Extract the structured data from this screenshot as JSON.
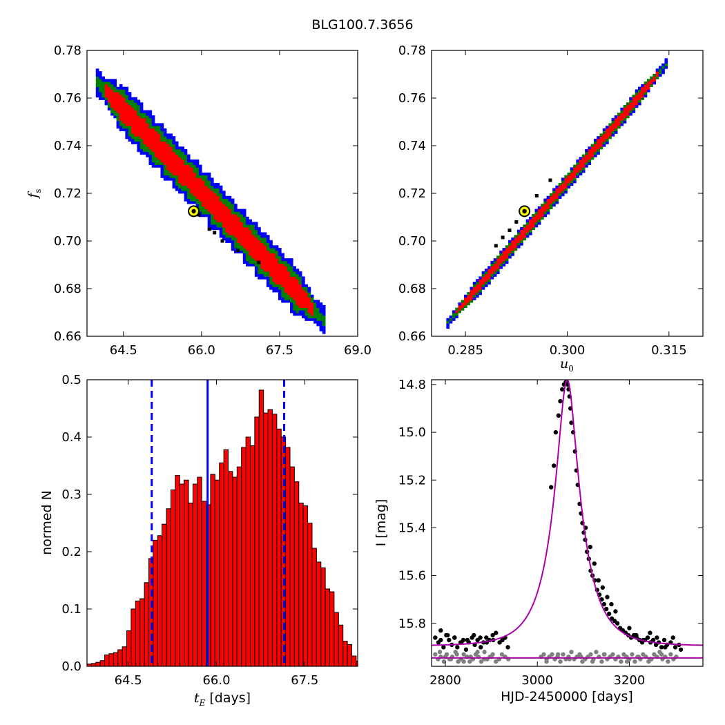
{
  "figure": {
    "title": "BLG100.7.3656"
  },
  "colors": {
    "sigma1": "#ff0000",
    "sigma2": "#008000",
    "sigma3": "#0000ff",
    "bar": "#ff0000",
    "model": "#aa00aa",
    "data": "#000000",
    "residual": "#808080",
    "best": "#ffff00"
  },
  "chart_data": [
    {
      "type": "heatmap",
      "panel": "top-left",
      "xlabel": "",
      "ylabel": "f_s",
      "ylabel_main": "f",
      "ylabel_sub": "s",
      "xlim": [
        63.8,
        69.0
      ],
      "ylim": [
        0.66,
        0.78
      ],
      "xticks": [
        "64.5",
        "66.0",
        "67.5",
        "69.0"
      ],
      "xtick_values": [
        64.5,
        66.0,
        67.5,
        69.0
      ],
      "yticks": [
        "0.66",
        "0.68",
        "0.70",
        "0.72",
        "0.74",
        "0.76",
        "0.78"
      ],
      "ytick_values": [
        0.66,
        0.68,
        0.7,
        0.72,
        0.74,
        0.76,
        0.78
      ],
      "ridge": [
        [
          64.0,
          0.7665
        ],
        [
          68.3,
          0.668
        ]
      ],
      "half_width": {
        "sigma1": 0.0048,
        "sigma2": 0.0075,
        "sigma3": 0.0098
      },
      "best_fit": [
        65.85,
        0.7125
      ],
      "black_cells": [
        [
          65.95,
          0.711
        ],
        [
          66.15,
          0.705
        ],
        [
          66.25,
          0.7035
        ],
        [
          66.4,
          0.7
        ],
        [
          66.7,
          0.696
        ],
        [
          67.1,
          0.691
        ]
      ]
    },
    {
      "type": "heatmap",
      "panel": "top-right",
      "xlabel": "u_0",
      "xlabel_main": "u",
      "xlabel_sub": "0",
      "ylabel": "",
      "xlim": [
        0.28,
        0.32
      ],
      "ylim": [
        0.66,
        0.78
      ],
      "xticks": [
        "0.285",
        "0.300",
        "0.315"
      ],
      "xtick_values": [
        0.285,
        0.3,
        0.315
      ],
      "yticks": [
        "0.66",
        "0.68",
        "0.70",
        "0.72",
        "0.74",
        "0.76",
        "0.78"
      ],
      "ytick_values": [
        0.66,
        0.68,
        0.7,
        0.72,
        0.74,
        0.76,
        0.78
      ],
      "ridge": [
        [
          0.2827,
          0.667
        ],
        [
          0.3142,
          0.773
        ]
      ],
      "half_width": {
        "sigma1": 0.0018,
        "sigma2": 0.0028,
        "sigma3": 0.0037
      },
      "best_fit": [
        0.2937,
        0.7125
      ],
      "black_cells": [
        [
          0.2925,
          0.708
        ],
        [
          0.2915,
          0.7045
        ],
        [
          0.2905,
          0.7015
        ],
        [
          0.2895,
          0.698
        ],
        [
          0.2955,
          0.719
        ],
        [
          0.2975,
          0.7255
        ]
      ]
    },
    {
      "type": "bar",
      "panel": "bottom-left",
      "xlabel": "t_E [days]",
      "xlabel_main": "t",
      "xlabel_sub": "E",
      "xlabel_unit": " [days]",
      "ylabel": "normed N",
      "xlim": [
        63.8,
        68.4
      ],
      "ylim": [
        0.0,
        0.5
      ],
      "xticks": [
        "64.5",
        "66.0",
        "67.5"
      ],
      "xtick_values": [
        64.5,
        66.0,
        67.5
      ],
      "yticks": [
        "0.0",
        "0.1",
        "0.2",
        "0.3",
        "0.4",
        "0.5"
      ],
      "ytick_values": [
        0.0,
        0.1,
        0.2,
        0.3,
        0.4,
        0.5
      ],
      "bin_start": 63.8,
      "bin_width": 0.075,
      "values": [
        0.004,
        0.005,
        0.007,
        0.01,
        0.02,
        0.022,
        0.024,
        0.029,
        0.034,
        0.062,
        0.1,
        0.114,
        0.118,
        0.146,
        0.188,
        0.22,
        0.228,
        0.248,
        0.275,
        0.308,
        0.333,
        0.318,
        0.325,
        0.285,
        0.318,
        0.33,
        0.288,
        0.282,
        0.335,
        0.325,
        0.355,
        0.378,
        0.34,
        0.33,
        0.348,
        0.382,
        0.4,
        0.385,
        0.435,
        0.482,
        0.442,
        0.448,
        0.44,
        0.414,
        0.4,
        0.382,
        0.348,
        0.322,
        0.285,
        0.28,
        0.25,
        0.206,
        0.182,
        0.172,
        0.135,
        0.13,
        0.094,
        0.072,
        0.044,
        0.038,
        0.018,
        0.009,
        0.005,
        0.004,
        0.003,
        0.003
      ],
      "vlines": {
        "solid": 65.85,
        "dashed": [
          64.9,
          67.15
        ]
      }
    },
    {
      "type": "scatter",
      "panel": "bottom-right",
      "xlabel": "HJD-2450000 [days]",
      "ylabel": "I [mag]",
      "xlim": [
        2770,
        3360
      ],
      "ylim": [
        15.98,
        14.78
      ],
      "xticks": [
        "2800",
        "3000",
        "3200"
      ],
      "xtick_values": [
        2800,
        3000,
        3200
      ],
      "yticks": [
        "14.8",
        "15.0",
        "15.2",
        "15.4",
        "15.6",
        "15.8"
      ],
      "ytick_values": [
        14.8,
        15.0,
        15.2,
        15.4,
        15.6,
        15.8
      ],
      "model": {
        "t0": 3065,
        "tE": 65.85,
        "u0": 0.2937,
        "fs": 0.7125,
        "base_mag": 15.895
      },
      "residual_level": 15.945,
      "series": [
        {
          "x": [
            2778,
            2785,
            2790,
            2796,
            2802,
            2808,
            2814,
            2820,
            2826,
            2833,
            2839,
            2845,
            2851,
            2858,
            2864,
            2870,
            2877,
            2883,
            2889,
            2896,
            2903,
            2910,
            2918,
            2924,
            2930,
            2936,
            2790,
            2805,
            2820,
            2835,
            2848,
            2862,
            2876,
            2890,
            2904,
            3030,
            3036,
            3040,
            3046,
            3050,
            3054,
            3058,
            3062,
            3066,
            3068,
            3070,
            3072,
            3074,
            3078,
            3082,
            3085,
            3088,
            3092,
            3095,
            3098,
            3101,
            3104,
            3108,
            3112,
            3116,
            3120,
            3125,
            3130,
            3135,
            3140,
            3145,
            3150,
            3156,
            3162,
            3168,
            3174,
            3180,
            3186,
            3192,
            3198,
            3204,
            3210,
            3216,
            3222,
            3228,
            3234,
            3240,
            3246,
            3252,
            3258,
            3264,
            3270,
            3276,
            3282,
            3290,
            3300,
            3308,
            3200,
            3215,
            3230,
            3245,
            3260,
            3278,
            3295,
            3312,
            3105,
            3115,
            3124,
            3133,
            3142,
            3152,
            3161,
            3170
          ],
          "y": [
            15.86,
            15.88,
            15.87,
            15.9,
            15.85,
            15.87,
            15.89,
            15.86,
            15.9,
            15.88,
            15.87,
            15.91,
            15.88,
            15.86,
            15.89,
            15.87,
            15.9,
            15.88,
            15.86,
            15.87,
            15.85,
            15.84,
            15.88,
            15.87,
            15.86,
            15.9,
            15.83,
            15.85,
            15.86,
            15.88,
            15.87,
            15.85,
            15.86,
            15.88,
            15.87,
            15.23,
            15.14,
            15.0,
            14.93,
            14.87,
            14.82,
            14.8,
            14.79,
            14.8,
            14.82,
            14.85,
            14.9,
            14.96,
            15.0,
            15.08,
            15.16,
            15.22,
            15.3,
            15.34,
            15.38,
            15.42,
            15.45,
            15.5,
            15.53,
            15.58,
            15.6,
            15.62,
            15.66,
            15.68,
            15.7,
            15.72,
            15.74,
            15.76,
            15.78,
            15.79,
            15.8,
            15.82,
            15.83,
            15.84,
            15.85,
            15.86,
            15.85,
            15.86,
            15.87,
            15.88,
            15.87,
            15.86,
            15.88,
            15.87,
            15.89,
            15.88,
            15.9,
            15.87,
            15.89,
            15.88,
            15.9,
            15.89,
            15.82,
            15.85,
            15.87,
            15.84,
            15.86,
            15.9,
            15.86,
            15.91,
            15.4,
            15.48,
            15.55,
            15.62,
            15.65,
            15.69,
            15.72,
            15.75
          ]
        },
        {
          "x": [
            2778,
            2784,
            2790,
            2797,
            2803,
            2809,
            2815,
            2822,
            2828,
            2834,
            2840,
            2847,
            2853,
            2860,
            2866,
            2872,
            2878,
            2885,
            2891,
            2897,
            2903,
            2910,
            2917,
            2923,
            2930,
            2937,
            2788,
            2800,
            2812,
            2825,
            2840,
            2855,
            2870,
            2885,
            2900,
            3008,
            3014,
            3020,
            3026,
            3032,
            3038,
            3044,
            3050,
            3056,
            3062,
            3068,
            3074,
            3080,
            3086,
            3092,
            3098,
            3104,
            3110,
            3116,
            3122,
            3128,
            3134,
            3140,
            3146,
            3152,
            3158,
            3164,
            3170,
            3176,
            3182,
            3188,
            3194,
            3200,
            3206,
            3212,
            3218,
            3224,
            3230,
            3236,
            3242,
            3248,
            3254,
            3260,
            3266,
            3272,
            3278,
            3284,
            3290,
            3296,
            3302,
            3020,
            3045,
            3070,
            3095,
            3120,
            3145,
            3170,
            3195,
            3220,
            3245,
            3270
          ],
          "y": [
            15.93,
            15.95,
            15.94,
            15.96,
            15.93,
            15.95,
            15.94,
            15.92,
            15.96,
            15.95,
            15.93,
            15.94,
            15.96,
            15.95,
            15.93,
            15.94,
            15.96,
            15.92,
            15.95,
            15.94,
            15.93,
            15.96,
            15.95,
            15.93,
            15.94,
            15.95,
            15.92,
            15.94,
            15.95,
            15.93,
            15.96,
            15.94,
            15.92,
            15.95,
            15.94,
            15.94,
            15.93,
            15.95,
            15.94,
            15.93,
            15.95,
            15.94,
            15.96,
            15.93,
            15.95,
            15.94,
            15.92,
            15.95,
            15.94,
            15.93,
            15.96,
            15.95,
            15.94,
            15.93,
            15.95,
            15.92,
            15.94,
            15.96,
            15.93,
            15.95,
            15.94,
            15.93,
            15.95,
            15.94,
            15.96,
            15.93,
            15.94,
            15.95,
            15.93,
            15.96,
            15.94,
            15.95,
            15.93,
            15.94,
            15.96,
            15.95,
            15.93,
            15.94,
            15.92,
            15.95,
            15.94,
            15.96,
            15.93,
            15.95,
            15.94,
            15.96,
            15.93,
            15.95,
            15.94,
            15.96,
            15.93,
            15.95,
            15.96,
            15.94,
            15.95,
            15.93
          ]
        }
      ]
    }
  ]
}
